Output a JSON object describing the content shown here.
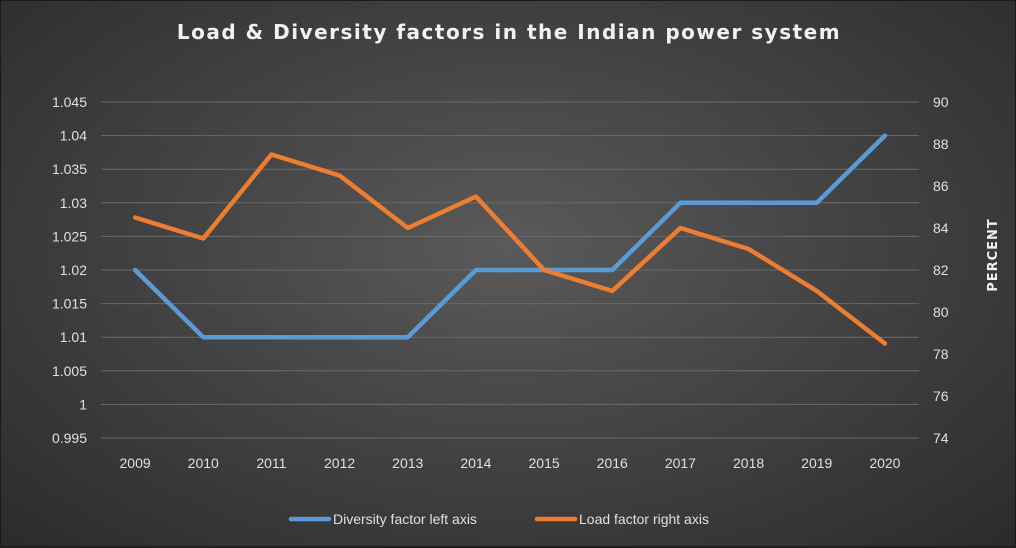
{
  "chart_data": {
    "type": "line",
    "title": "Load & Diversity factors in the Indian power system",
    "xlabel": "",
    "ylabel_left": "",
    "ylabel_right": "PERCENT",
    "categories": [
      "2009",
      "2010",
      "2011",
      "2012",
      "2013",
      "2014",
      "2015",
      "2016",
      "2017",
      "2018",
      "2019",
      "2020"
    ],
    "ylim_left": [
      0.995,
      1.045
    ],
    "yticks_left": [
      "0.995",
      "1",
      "1.005",
      "1.01",
      "1.015",
      "1.02",
      "1.025",
      "1.03",
      "1.035",
      "1.04",
      "1.045"
    ],
    "ylim_right": [
      74,
      90
    ],
    "yticks_right": [
      "74",
      "76",
      "78",
      "80",
      "82",
      "84",
      "86",
      "88",
      "90"
    ],
    "grid": true,
    "legend_position": "bottom",
    "series": [
      {
        "name": "Diversity factor left axis",
        "axis": "left",
        "color": "#5b9bd5",
        "values": [
          1.02,
          1.01,
          1.01,
          1.01,
          1.01,
          1.02,
          1.02,
          1.02,
          1.03,
          1.03,
          1.03,
          1.04
        ]
      },
      {
        "name": "Load factor right axis",
        "axis": "right",
        "color": "#ed7d31",
        "values": [
          84.5,
          83.5,
          87.5,
          86.5,
          84.0,
          85.5,
          82.0,
          81.0,
          84.0,
          83.0,
          81.0,
          78.5
        ]
      }
    ]
  }
}
